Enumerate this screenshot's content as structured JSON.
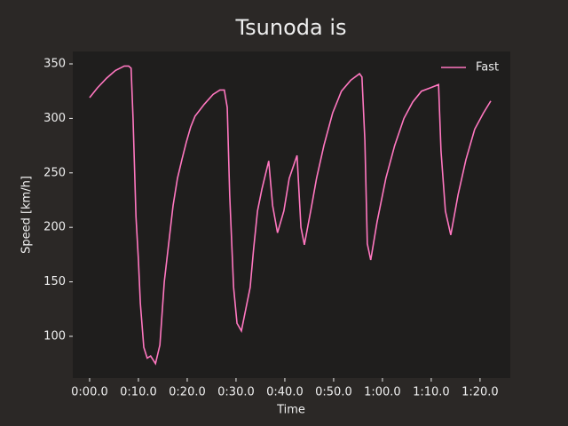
{
  "chart_data": {
    "type": "line",
    "title": "Tsunoda is",
    "x_label": "Time",
    "y_label": "Speed [km/h]",
    "x": [
      0,
      1.6,
      3.5,
      5.3,
      7.1,
      8,
      8.5,
      8.9,
      9.5,
      10,
      10.4,
      11.1,
      11.8,
      12.5,
      13.5,
      14.4,
      15.3,
      16.2,
      17.1,
      18,
      18.9,
      19.8,
      20.7,
      21.6,
      23.5,
      25.3,
      26.7,
      27.6,
      28.2,
      28.7,
      29.5,
      30.2,
      31.1,
      32,
      32.9,
      33.6,
      34.4,
      35.3,
      36.7,
      37.5,
      38.5,
      39.8,
      40.9,
      42.5,
      43.3,
      44,
      45.3,
      46.5,
      48,
      49.8,
      51.6,
      53.5,
      55.3,
      55.8,
      56.4,
      56.9,
      57.6,
      58.9,
      60.7,
      62.5,
      64.4,
      66.2,
      68,
      69.8,
      71.5,
      72,
      72.9,
      74,
      75.5,
      77.1,
      78.9,
      80.7,
      82.2
    ],
    "series": [
      {
        "name": "Fast",
        "color": "#ff77c0",
        "values": [
          319,
          328,
          337,
          344,
          348,
          348,
          346,
          300,
          210,
          170,
          130,
          90,
          80,
          82,
          75,
          92,
          150,
          185,
          220,
          245,
          262,
          278,
          292,
          302,
          313,
          322,
          326,
          326,
          310,
          230,
          145,
          112,
          105,
          125,
          145,
          180,
          215,
          235,
          261,
          220,
          195,
          215,
          245,
          266,
          200,
          184,
          215,
          245,
          275,
          305,
          325,
          335,
          341,
          338,
          280,
          185,
          170,
          205,
          245,
          275,
          300,
          315,
          325,
          328,
          331,
          270,
          215,
          193,
          230,
          262,
          290,
          305,
          316
        ]
      }
    ],
    "xlim": [
      -3.45,
      86.2
    ],
    "ylim": [
      61.7,
      361.4
    ],
    "xticks": [
      {
        "value": 0,
        "label": "0:00.0"
      },
      {
        "value": 10,
        "label": "0:10.0"
      },
      {
        "value": 20,
        "label": "0:20.0"
      },
      {
        "value": 30,
        "label": "0:30.0"
      },
      {
        "value": 40,
        "label": "0:40.0"
      },
      {
        "value": 50,
        "label": "0:50.0"
      },
      {
        "value": 60,
        "label": "1:00.0"
      },
      {
        "value": 70,
        "label": "1:10.0"
      },
      {
        "value": 80,
        "label": "1:20.0"
      }
    ],
    "yticks": [
      100,
      150,
      200,
      250,
      300,
      350
    ],
    "legend": "upper right"
  }
}
